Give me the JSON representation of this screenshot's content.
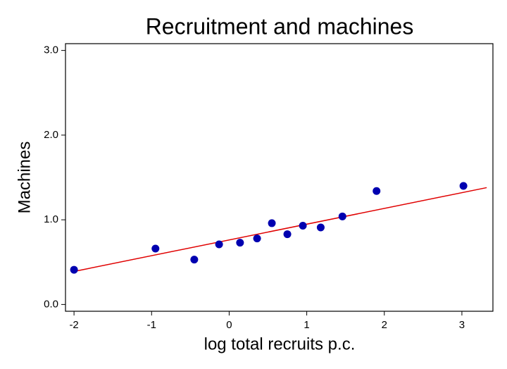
{
  "chart_data": {
    "type": "scatter",
    "title": "Recruitment and machines",
    "xlabel": "log total recruits p.c.",
    "ylabel": "Machines",
    "series": [
      {
        "name": null,
        "color": "#0000b0",
        "x": [
          -2.0,
          -0.95,
          -0.45,
          -0.13,
          0.14,
          0.36,
          0.55,
          0.75,
          0.95,
          1.18,
          1.46,
          1.9,
          3.02
        ],
        "values": [
          0.41,
          0.66,
          0.53,
          0.71,
          0.73,
          0.78,
          0.96,
          0.83,
          0.93,
          0.91,
          1.04,
          1.34,
          1.4
        ]
      }
    ],
    "fit_line": {
      "x": [
        -2.0,
        3.32
      ],
      "y": [
        0.39,
        1.38
      ],
      "color": "#e00000"
    },
    "xlim": [
      -2.11,
      3.4
    ],
    "xticks": [
      -2,
      -1,
      0,
      1,
      2,
      3
    ],
    "ylim": [
      -0.08,
      3.08
    ],
    "yticks": [
      {
        "value": 0,
        "label": "0.0"
      },
      {
        "value": 1,
        "label": "1.0"
      },
      {
        "value": 2,
        "label": "2.0"
      },
      {
        "value": 3,
        "label": "3.0"
      }
    ]
  }
}
